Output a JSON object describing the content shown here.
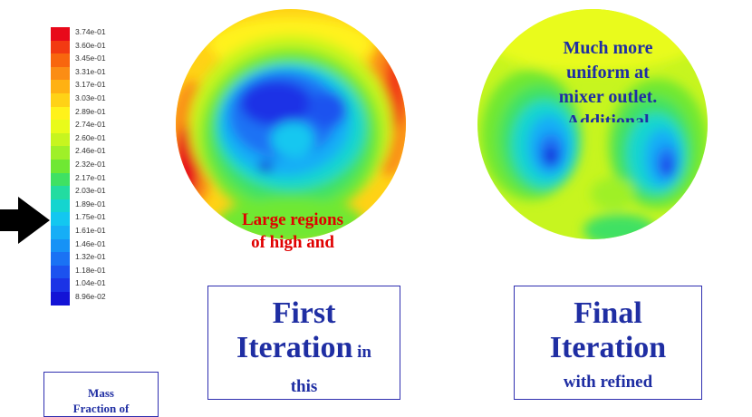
{
  "legend": {
    "ticks": [
      "3.74e-01",
      "3.60e-01",
      "3.45e-01",
      "3.31e-01",
      "3.17e-01",
      "3.03e-01",
      "2.89e-01",
      "2.74e-01",
      "2.60e-01",
      "2.46e-01",
      "2.32e-01",
      "2.17e-01",
      "2.03e-01",
      "1.89e-01",
      "1.75e-01",
      "1.61e-01",
      "1.46e-01",
      "1.32e-01",
      "1.18e-01",
      "1.04e-01",
      "8.96e-02"
    ],
    "colors": [
      "#e8091a",
      "#f23a12",
      "#f8660e",
      "#fb8d14",
      "#ffb113",
      "#ffd216",
      "#fff21a",
      "#e9fb1a",
      "#c7f51f",
      "#9ff028",
      "#6fe833",
      "#3fe163",
      "#22dca1",
      "#14d5cf",
      "#13c7f0",
      "#16aef6",
      "#1692f6",
      "#1a72f4",
      "#1c52ef",
      "#1b33e6",
      "#1313d6"
    ],
    "label_lines": [
      "Mass",
      "Fraction of"
    ]
  },
  "contours": {
    "first_label_lines": [
      "Large regions",
      "of high and"
    ],
    "final_label_lines": [
      "Much more",
      "uniform at",
      "mixer outlet.",
      "Additional"
    ]
  },
  "captions": {
    "first": {
      "line1": "First",
      "line2_big": "Iteration",
      "line2_small": " in",
      "line3": "this"
    },
    "final": {
      "line1": "Final",
      "line2_big": "Iteration",
      "line3": "with refined"
    }
  },
  "icons": {
    "pointer": "arrow-right-icon"
  }
}
